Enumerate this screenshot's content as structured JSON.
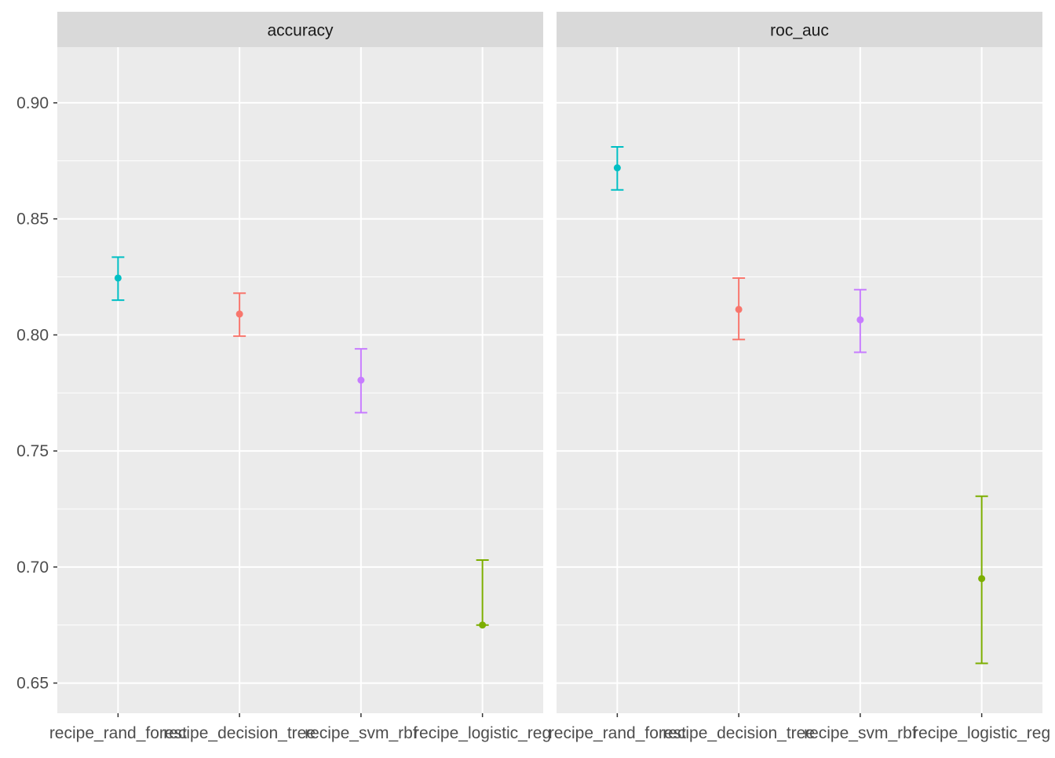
{
  "chart_data": {
    "type": "errorbar",
    "categories": [
      "recipe_rand_forest",
      "recipe_decision_tree",
      "recipe_svm_rbf",
      "recipe_logistic_reg"
    ],
    "category_colors": [
      "#00BFC4",
      "#F8766D",
      "#C77CFF",
      "#7CAE00"
    ],
    "y_ticks": [
      "0.65",
      "0.70",
      "0.75",
      "0.80",
      "0.85",
      "0.90"
    ],
    "ylim": [
      0.637,
      0.924
    ],
    "grid": true,
    "panels": [
      {
        "name": "accuracy",
        "series": [
          {
            "category": "recipe_rand_forest",
            "mean": 0.8245,
            "lower": 0.815,
            "upper": 0.8335
          },
          {
            "category": "recipe_decision_tree",
            "mean": 0.809,
            "lower": 0.7995,
            "upper": 0.818
          },
          {
            "category": "recipe_svm_rbf",
            "mean": 0.7805,
            "lower": 0.7665,
            "upper": 0.794
          },
          {
            "category": "recipe_logistic_reg",
            "mean": 0.675,
            "lower": 0.675,
            "upper": 0.703
          }
        ]
      },
      {
        "name": "roc_auc",
        "series": [
          {
            "category": "recipe_rand_forest",
            "mean": 0.872,
            "lower": 0.8625,
            "upper": 0.881
          },
          {
            "category": "recipe_decision_tree",
            "mean": 0.811,
            "lower": 0.798,
            "upper": 0.8245
          },
          {
            "category": "recipe_svm_rbf",
            "mean": 0.8065,
            "lower": 0.7925,
            "upper": 0.8195
          },
          {
            "category": "recipe_logistic_reg",
            "mean": 0.695,
            "lower": 0.6585,
            "upper": 0.7305
          }
        ]
      }
    ]
  }
}
